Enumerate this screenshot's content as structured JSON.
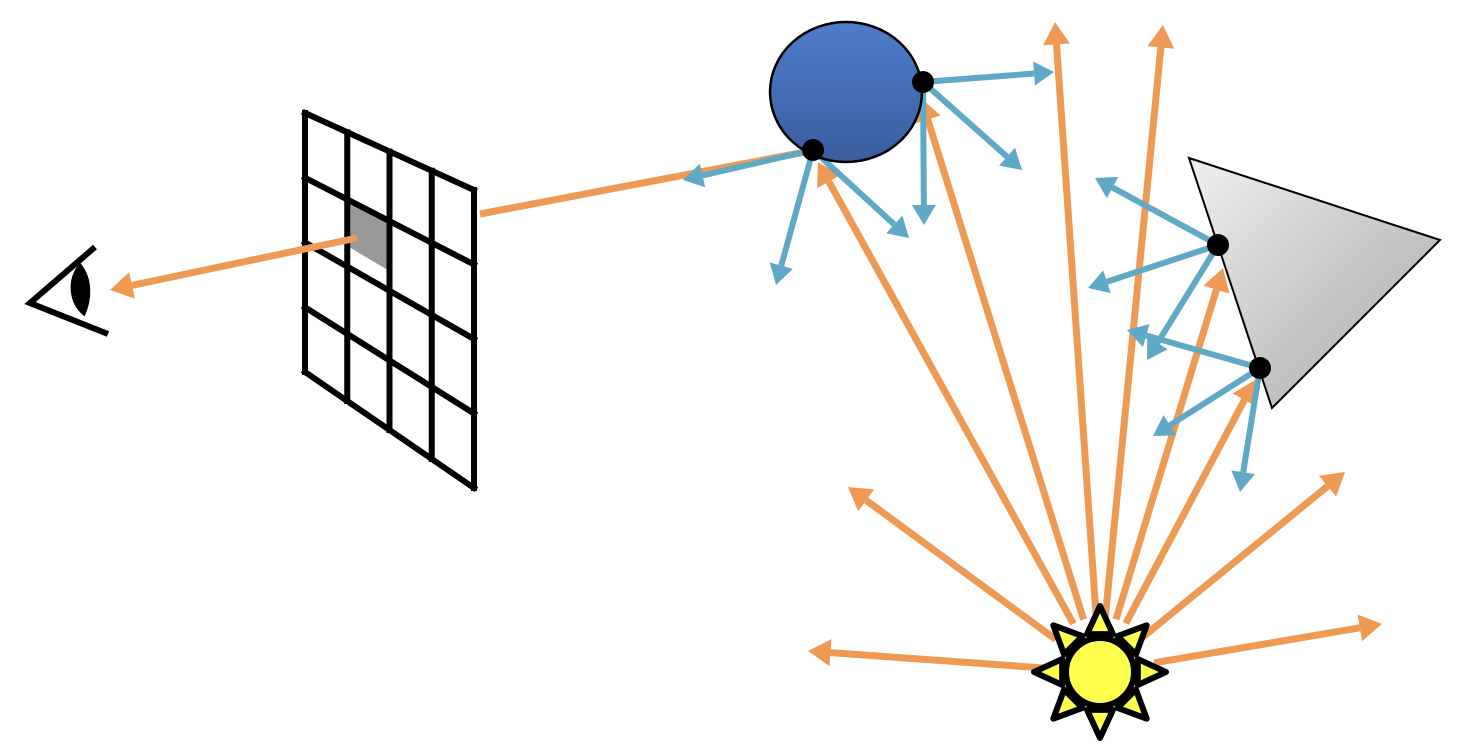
{
  "colors": {
    "light_ray": "#EE9A55",
    "scattered_ray": "#5FA8C6",
    "background": "#FFFFFF",
    "outline": "#000000",
    "sphere_top": "#4F7CCB",
    "sphere_bottom": "#3A5E9E",
    "prism_light": "#F0F0F0",
    "prism_dark": "#A6A6A6",
    "sun_core": "#FFFF4D",
    "pixel_highlight": "#999999"
  },
  "icons": {
    "viewer": "eye-icon",
    "light_source": "sun-icon"
  },
  "scene": {
    "objects": [
      "sphere",
      "prism"
    ],
    "image_plane_grid": {
      "rows": 4,
      "cols": 4,
      "highlighted_cell": [
        1,
        1
      ]
    }
  }
}
